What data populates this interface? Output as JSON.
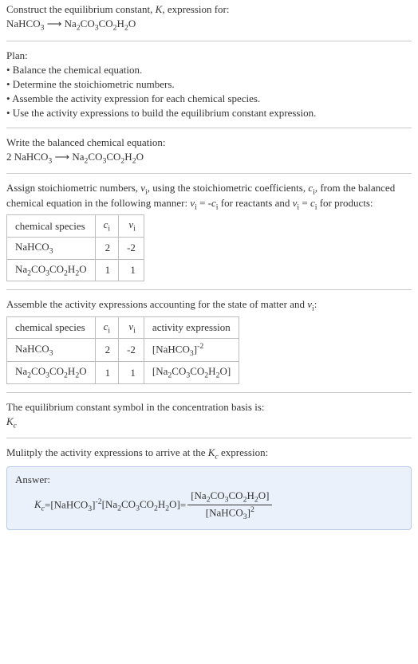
{
  "intro": {
    "l1": "Construct the equilibrium constant, K, expression for:",
    "eq_lhs": "NaHCO",
    "eq_lhs_sub": "3",
    "arrow": " ⟶ ",
    "eq_rhs": "Na",
    "eq_rhs_sub1": "2",
    "eq_rhs_mid1": "CO",
    "eq_rhs_sub2": "3",
    "eq_rhs_mid2": "CO",
    "eq_rhs_sub3": "2",
    "eq_rhs_mid3": "H",
    "eq_rhs_sub4": "2",
    "eq_rhs_end": "O"
  },
  "plan": {
    "title": "Plan:",
    "b1": "• Balance the chemical equation.",
    "b2": "• Determine the stoichiometric numbers.",
    "b3": "• Assemble the activity expression for each chemical species.",
    "b4": "• Use the activity expressions to build the equilibrium constant expression."
  },
  "balanced": {
    "title": "Write the balanced chemical equation:",
    "coef": "2 ",
    "lhs": "NaHCO",
    "lhs_sub": "3",
    "arrow": " ⟶ ",
    "rhs": "Na",
    "rhs_sub1": "2",
    "rhs_mid1": "CO",
    "rhs_sub2": "3",
    "rhs_mid2": "CO",
    "rhs_sub3": "2",
    "rhs_mid3": "H",
    "rhs_sub4": "2",
    "rhs_end": "O"
  },
  "assign": "Assign stoichiometric numbers, νᵢ, using the stoichiometric coefficients, cᵢ, from the balanced chemical equation in the following manner: νᵢ = -cᵢ for reactants and νᵢ = cᵢ for products:",
  "t1": {
    "h1": "chemical species",
    "h2": "cᵢ",
    "h3": "νᵢ",
    "r1c1a": "NaHCO",
    "r1c1b": "3",
    "r1c2": "2",
    "r1c3": "-2",
    "r2c1a": "Na",
    "r2s1": "2",
    "r2m1": "CO",
    "r2s2": "3",
    "r2m2": "CO",
    "r2s3": "2",
    "r2m3": "H",
    "r2s4": "2",
    "r2e": "O",
    "r2c2": "1",
    "r2c3": "1"
  },
  "assemble": "Assemble the activity expressions accounting for the state of matter and νᵢ:",
  "t2": {
    "h1": "chemical species",
    "h2": "cᵢ",
    "h3": "νᵢ",
    "h4": "activity expression",
    "r1a1": "NaHCO",
    "r1a1s": "3",
    "r1c2": "2",
    "r1c3": "-2",
    "r1a4a": "[NaHCO",
    "r1a4b": "3",
    "r1a4c": "]",
    "r1a4d": "-2",
    "r2c2": "1",
    "r2c3": "1",
    "r2a4a": "[Na",
    "r2s1": "2",
    "r2m1": "CO",
    "r2s2": "3",
    "r2m2": "CO",
    "r2s3": "2",
    "r2m3": "H",
    "r2s4": "2",
    "r2e": "O]"
  },
  "symbol": {
    "l1": "The equilibrium constant symbol in the concentration basis is:",
    "l2a": "K",
    "l2b": "c"
  },
  "multiply": "Mulitply the activity expressions to arrive at the Kc expression:",
  "answer": {
    "label": "Answer:",
    "kc_k": "K",
    "kc_c": "c",
    "eq": " = ",
    "p1a": "[NaHCO",
    "p1b": "3",
    "p1c": "]",
    "p1d": "-2",
    "sp": " ",
    "p2a": "[Na",
    "p2s1": "2",
    "p2m1": "CO",
    "p2s2": "3",
    "p2m2": "CO",
    "p2s3": "2",
    "p2m3": "H",
    "p2s4": "2",
    "p2e": "O]",
    "eq2": " = ",
    "num_a": "[Na",
    "num_s1": "2",
    "num_m1": "CO",
    "num_s2": "3",
    "num_m2": "CO",
    "num_s3": "2",
    "num_m3": "H",
    "num_s4": "2",
    "num_e": "O]",
    "den_a": "[NaHCO",
    "den_b": "3",
    "den_c": "]",
    "den_d": "2"
  },
  "colors": {
    "box_bg": "#eaf1fb",
    "box_border": "#b7cbe4",
    "rule": "#c8c8c8",
    "table_border": "#bdbdbd"
  }
}
